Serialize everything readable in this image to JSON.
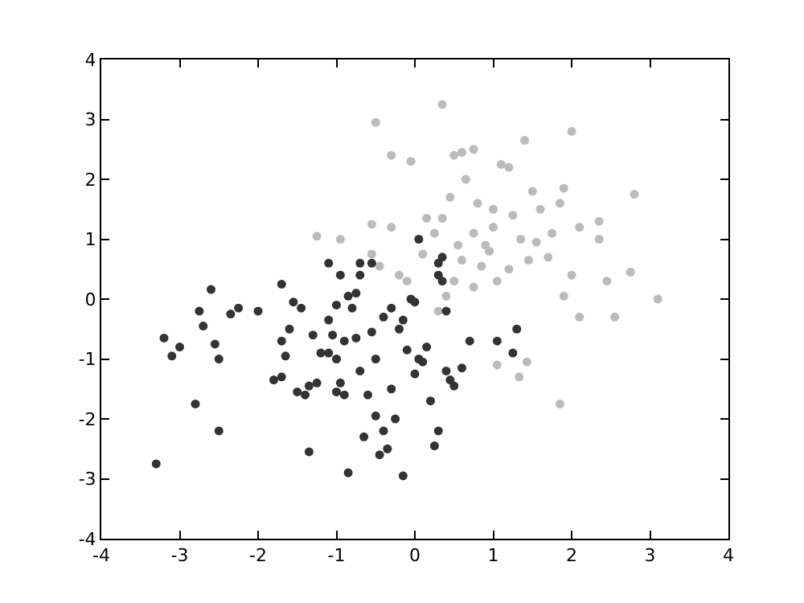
{
  "chart_data": {
    "type": "scatter",
    "marker": "circle",
    "xlim": [
      -4,
      4
    ],
    "ylim": [
      -4,
      4
    ],
    "xticks": [
      -4,
      -3,
      -2,
      -1,
      0,
      1,
      2,
      3,
      4
    ],
    "yticks": [
      -4,
      -3,
      -2,
      -1,
      0,
      1,
      2,
      3,
      4
    ],
    "series": [
      {
        "color": "#bbbbbb",
        "x": [
          -0.5,
          -0.3,
          -0.05,
          0.35,
          -0.55,
          -0.3,
          -0.95,
          -1.25,
          -0.55,
          -0.45,
          -0.2,
          -0.1,
          0.1,
          0.15,
          0.25,
          0.35,
          0.45,
          0.5,
          0.6,
          0.65,
          0.75,
          0.75,
          0.8,
          0.85,
          0.9,
          1.0,
          1.1,
          1.2,
          1.4,
          1.55,
          1.6,
          1.35,
          1.45,
          1.2,
          1.05,
          0.75,
          0.5,
          0.4,
          0.3,
          0.6,
          1.75,
          1.85,
          2.0,
          2.1,
          2.35,
          2.35,
          2.8,
          2.75,
          2.0,
          1.9,
          2.45,
          3.1,
          1.9,
          1.85,
          1.05,
          1.43,
          1.33,
          2.1,
          2.55,
          1.0,
          1.25,
          0.95,
          0.55,
          1.5,
          1.7
        ],
        "values": [
          2.95,
          2.4,
          2.3,
          3.25,
          1.25,
          1.2,
          1.0,
          1.05,
          0.75,
          0.55,
          0.4,
          0.3,
          0.75,
          1.35,
          1.1,
          1.35,
          1.7,
          2.4,
          2.45,
          2.0,
          2.5,
          1.1,
          1.6,
          0.55,
          0.9,
          1.5,
          2.25,
          2.2,
          2.65,
          0.95,
          1.5,
          1.0,
          0.65,
          0.5,
          0.3,
          0.2,
          0.3,
          0.05,
          -0.2,
          0.65,
          1.1,
          1.6,
          2.8,
          1.2,
          1.3,
          1.0,
          1.75,
          0.45,
          0.4,
          1.85,
          0.3,
          0.0,
          0.05,
          -1.75,
          -1.1,
          -1.05,
          -1.3,
          -0.3,
          -0.3,
          1.2,
          1.4,
          0.8,
          0.9,
          1.8,
          0.7
        ]
      },
      {
        "color": "#333333",
        "x": [
          -3.3,
          -3.2,
          -3.1,
          -3.0,
          -2.8,
          -2.75,
          -2.7,
          -2.55,
          -2.5,
          -2.5,
          -2.35,
          -2.25,
          -2.0,
          -1.8,
          -1.7,
          -1.65,
          -1.7,
          -1.6,
          -1.7,
          -1.55,
          -1.45,
          -1.5,
          -1.4,
          -1.35,
          -1.35,
          -1.3,
          -1.25,
          -1.2,
          -1.1,
          -1.1,
          -1.05,
          -1.0,
          -1.0,
          -0.95,
          -0.9,
          -1.0,
          -0.9,
          -0.85,
          -0.8,
          -0.75,
          -0.7,
          -0.65,
          -0.6,
          -0.55,
          -0.5,
          -0.5,
          -0.45,
          -0.4,
          -0.4,
          -0.35,
          -0.3,
          -0.3,
          -0.25,
          -0.2,
          -0.15,
          -0.1,
          -0.05,
          -0.15,
          0.0,
          0.05,
          0.0,
          0.1,
          0.15,
          0.2,
          0.25,
          0.3,
          0.35,
          0.4,
          0.4,
          0.45,
          0.5,
          0.6,
          0.7,
          1.05,
          1.25,
          1.3,
          0.3,
          -2.6,
          -1.1,
          -0.95,
          -0.7,
          -0.7,
          -0.75,
          -0.85,
          -0.55,
          0.35,
          0.3,
          0.05
        ],
        "values": [
          -2.75,
          -0.65,
          -0.95,
          -0.8,
          -1.75,
          -0.2,
          -0.45,
          -0.75,
          -2.2,
          -1.0,
          -0.25,
          -0.15,
          -0.2,
          -1.35,
          -1.3,
          -0.95,
          -0.7,
          -0.5,
          0.25,
          -0.05,
          -0.15,
          -1.55,
          -1.6,
          -1.45,
          -2.55,
          -0.6,
          -1.4,
          -0.9,
          -0.35,
          -0.9,
          -0.6,
          -1.0,
          -1.55,
          -1.4,
          -1.6,
          -0.1,
          -0.7,
          -2.9,
          -0.15,
          -0.65,
          -1.2,
          -2.3,
          -1.6,
          -0.55,
          -1.0,
          -1.95,
          -2.6,
          -0.3,
          -2.2,
          -2.5,
          -0.15,
          -1.5,
          -2.0,
          -0.5,
          -0.35,
          -0.85,
          0.0,
          -2.95,
          -0.05,
          -1.0,
          -1.25,
          -1.05,
          -0.8,
          -1.7,
          -2.45,
          0.4,
          0.3,
          -0.2,
          -1.2,
          -1.35,
          -1.45,
          -1.15,
          -0.7,
          -0.7,
          -0.9,
          -0.5,
          -2.2,
          0.16,
          0.6,
          0.4,
          0.6,
          0.4,
          0.1,
          0.05,
          0.6,
          0.7,
          0.6,
          1.0
        ]
      }
    ]
  }
}
